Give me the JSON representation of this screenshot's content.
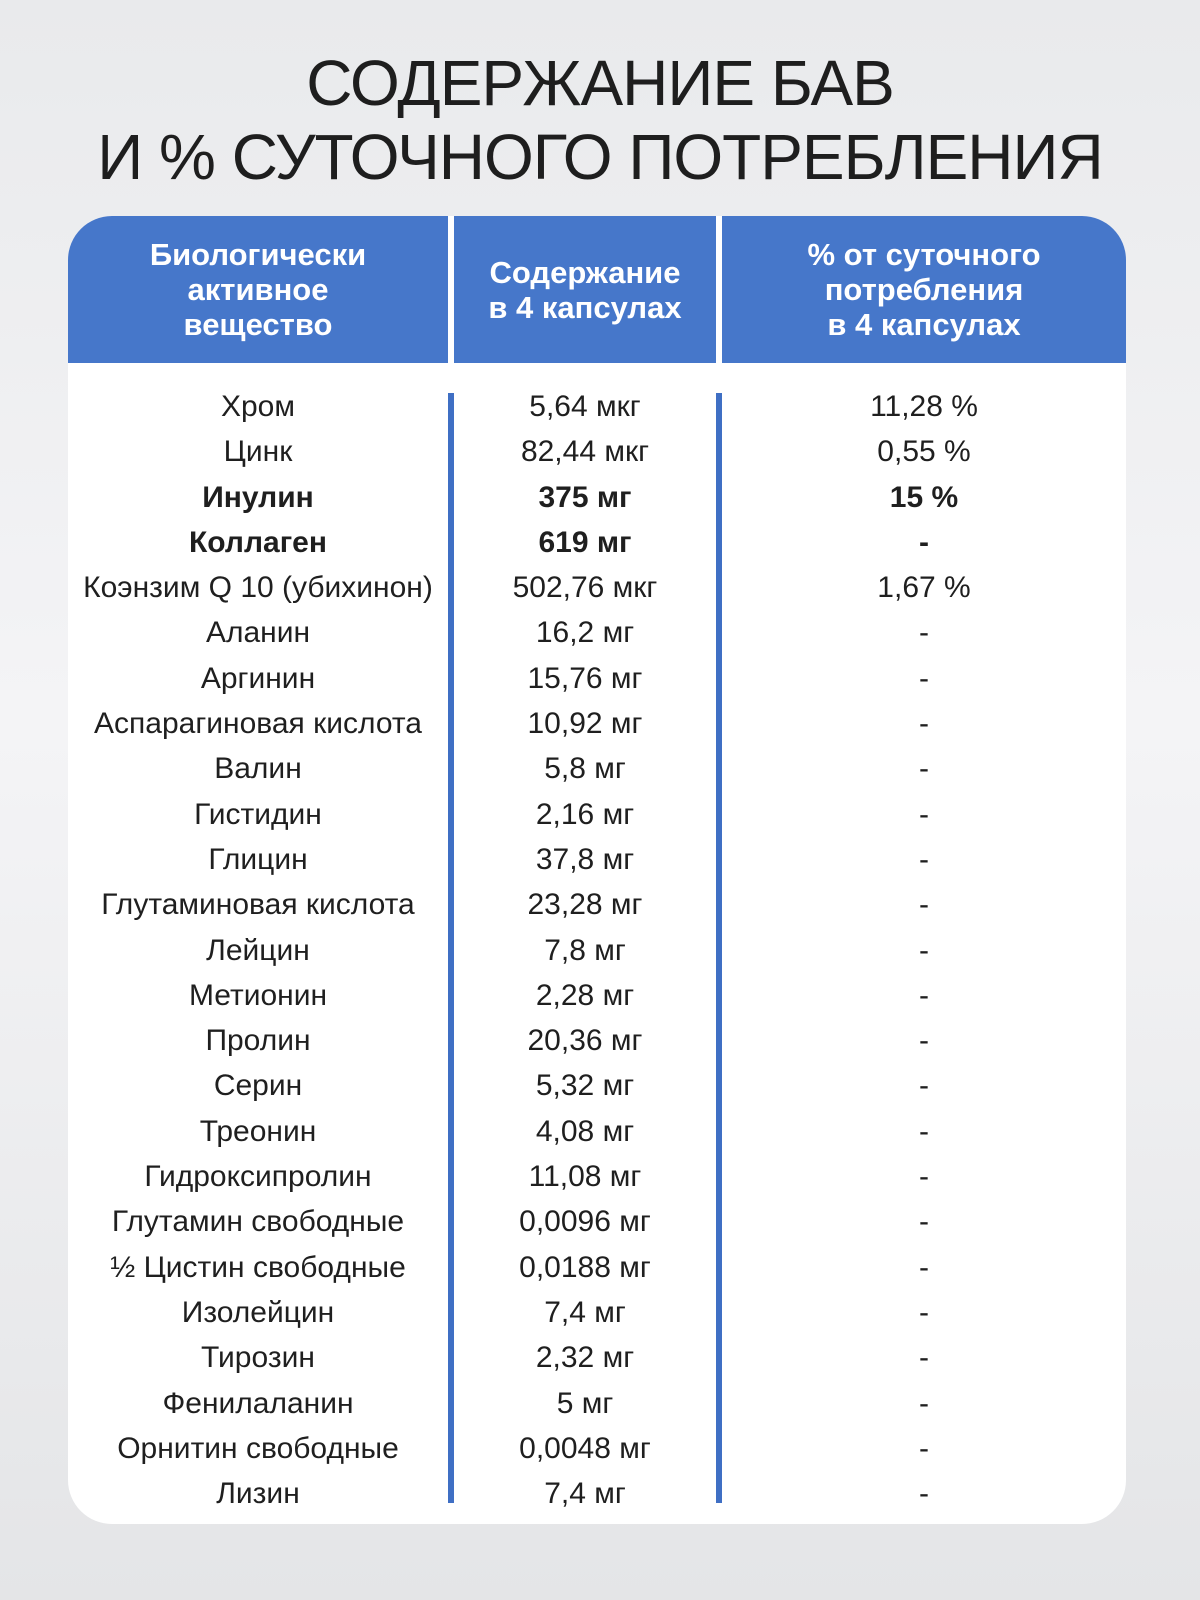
{
  "title": {
    "line1": "СОДЕРЖАНИЕ БАВ",
    "line2": "И % СУТОЧНОГО ПОТРЕБЛЕНИЯ"
  },
  "colors": {
    "header_bg": "#4677ca",
    "column_line": "#3f6fc4",
    "card_bg": "#ffffff",
    "text": "#1f1f1f"
  },
  "table": {
    "headers": [
      "Биологически\nактивное\nвещество",
      "Содержание\nв 4 капсулах",
      "% от суточного\nпотребления\nв 4 капсулах"
    ],
    "rows": [
      {
        "name": "Хром",
        "amount": "5,64 мкг",
        "percent": "11,28 %",
        "bold": false
      },
      {
        "name": "Цинк",
        "amount": "82,44 мкг",
        "percent": "0,55 %",
        "bold": false
      },
      {
        "name": "Инулин",
        "amount": "375 мг",
        "percent": "15 %",
        "bold": true
      },
      {
        "name": "Коллаген",
        "amount": "619 мг",
        "percent": "-",
        "bold": true
      },
      {
        "name": "Коэнзим Q 10 (убихинон)",
        "amount": "502,76 мкг",
        "percent": "1,67 %",
        "bold": false
      },
      {
        "name": "Аланин",
        "amount": "16,2 мг",
        "percent": "-",
        "bold": false
      },
      {
        "name": "Аргинин",
        "amount": "15,76 мг",
        "percent": "-",
        "bold": false
      },
      {
        "name": "Аспарагиновая кислота",
        "amount": "10,92 мг",
        "percent": "-",
        "bold": false
      },
      {
        "name": "Валин",
        "amount": "5,8 мг",
        "percent": "-",
        "bold": false
      },
      {
        "name": "Гистидин",
        "amount": "2,16 мг",
        "percent": "-",
        "bold": false
      },
      {
        "name": "Глицин",
        "amount": "37,8 мг",
        "percent": "-",
        "bold": false
      },
      {
        "name": "Глутаминовая кислота",
        "amount": "23,28 мг",
        "percent": "-",
        "bold": false
      },
      {
        "name": "Лейцин",
        "amount": "7,8 мг",
        "percent": "-",
        "bold": false
      },
      {
        "name": "Метионин",
        "amount": "2,28 мг",
        "percent": "-",
        "bold": false
      },
      {
        "name": "Пролин",
        "amount": "20,36 мг",
        "percent": "-",
        "bold": false
      },
      {
        "name": "Серин",
        "amount": "5,32 мг",
        "percent": "-",
        "bold": false
      },
      {
        "name": "Треонин",
        "amount": "4,08 мг",
        "percent": "-",
        "bold": false
      },
      {
        "name": "Гидроксипролин",
        "amount": "11,08 мг",
        "percent": "-",
        "bold": false
      },
      {
        "name": "Глутамин свободные",
        "amount": "0,0096 мг",
        "percent": "-",
        "bold": false
      },
      {
        "name": "½ Цистин свободные",
        "amount": "0,0188 мг",
        "percent": "-",
        "bold": false
      },
      {
        "name": "Изолейцин",
        "amount": "7,4 мг",
        "percent": "-",
        "bold": false
      },
      {
        "name": "Тирозин",
        "amount": "2,32 мг",
        "percent": "-",
        "bold": false
      },
      {
        "name": "Фенилаланин",
        "amount": "5 мг",
        "percent": "-",
        "bold": false
      },
      {
        "name": "Орнитин свободные",
        "amount": "0,0048 мг",
        "percent": "-",
        "bold": false
      },
      {
        "name": "Лизин",
        "amount": "7,4 мг",
        "percent": "-",
        "bold": false
      }
    ]
  }
}
